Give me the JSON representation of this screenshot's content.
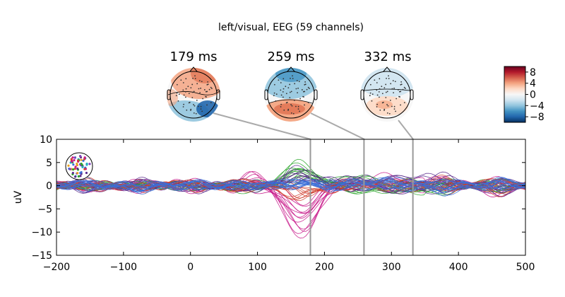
{
  "figure": {
    "title": "left/visual, EEG (59 channels)"
  },
  "topomaps": [
    {
      "time_label": "179 ms"
    },
    {
      "time_label": "259 ms"
    },
    {
      "time_label": "332 ms"
    }
  ],
  "colorbar": {
    "ticks": [
      "8",
      "4",
      "0",
      "−4",
      "−8"
    ],
    "tick_values": [
      8,
      4,
      0,
      -4,
      -8
    ],
    "range": [
      -10,
      10
    ],
    "colormap": [
      "#053061",
      "#2166ac",
      "#4393c3",
      "#92c5de",
      "#d1e5f0",
      "#f7f7f7",
      "#fddbc7",
      "#f4a582",
      "#d6604d",
      "#b2182b",
      "#67001f"
    ]
  },
  "chart_data": {
    "type": "line",
    "title": "left/visual, EEG (59 channels)",
    "xlabel": "",
    "ylabel": "uV",
    "xlim": [
      -200,
      500
    ],
    "ylim": [
      -15,
      10
    ],
    "x_ticks": [
      "−200",
      "−100",
      "0",
      "100",
      "200",
      "300",
      "400",
      "500"
    ],
    "x_tick_values": [
      -200,
      -100,
      0,
      100,
      200,
      300,
      400,
      500
    ],
    "y_ticks": [
      "10",
      "5",
      "0",
      "−5",
      "−10",
      "−15"
    ],
    "y_tick_values": [
      10,
      5,
      0,
      -5,
      -10,
      -15
    ],
    "grid": false,
    "markers_ms": [
      179,
      259,
      332
    ],
    "channel_count": 59,
    "group_colors": {
      "left_occipital": "#c8188a",
      "right_occipital": "#2aa52a",
      "frontal": "#5a2a8c",
      "temporal": "#d04030",
      "central": "#3a6fd8"
    }
  }
}
